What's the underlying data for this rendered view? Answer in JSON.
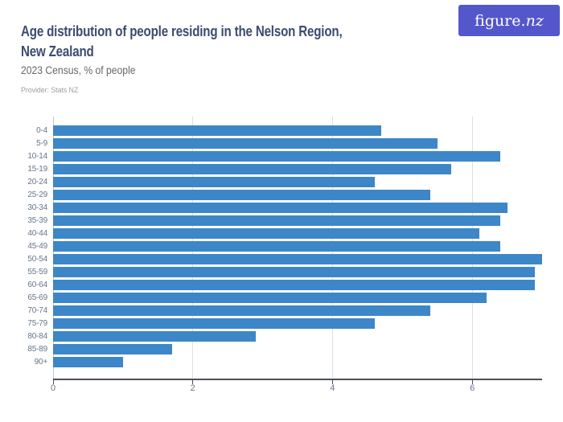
{
  "header": {
    "title_line1": "Age distribution of people residing in the Nelson Region,",
    "title_line2": "New Zealand",
    "subtitle": "2023 Census, % of people",
    "provider": "Provider: Stats NZ",
    "logo": {
      "text_regular": "figure.",
      "text_italic": "nz"
    }
  },
  "colors": {
    "bar": "#3d86c8",
    "title": "#3b4c6f",
    "subtitle": "#67676d",
    "provider": "#9d9da3",
    "axis_label": "#65758a",
    "gridline": "#dcdfe2",
    "gridline_zero": "#c3c7cc",
    "axis_line": "#4c5158",
    "logo_bg": "#5457cb",
    "logo_text": "#ffffff"
  },
  "chart_data": {
    "type": "bar",
    "orientation": "horizontal",
    "title": "Age distribution of people residing in the Nelson Region, New Zealand",
    "subtitle": "2023 Census, % of people",
    "source": "Provider: Stats NZ",
    "unit": "% of people",
    "categories": [
      "0-4",
      "5-9",
      "10-14",
      "15-19",
      "20-24",
      "25-29",
      "30-34",
      "35-39",
      "40-44",
      "45-49",
      "50-54",
      "55-59",
      "60-64",
      "65-69",
      "70-74",
      "75-79",
      "80-84",
      "85-89",
      "90+"
    ],
    "values": [
      4.7,
      5.5,
      6.4,
      5.7,
      4.6,
      5.4,
      6.5,
      6.4,
      6.1,
      6.4,
      7.0,
      6.9,
      6.9,
      6.2,
      5.4,
      4.6,
      2.9,
      1.7,
      1.0
    ],
    "xlabel": "",
    "ylabel": "",
    "xlim": [
      0,
      7
    ],
    "xticks": [
      0,
      2,
      4,
      6
    ],
    "grid": true,
    "legend": false
  }
}
